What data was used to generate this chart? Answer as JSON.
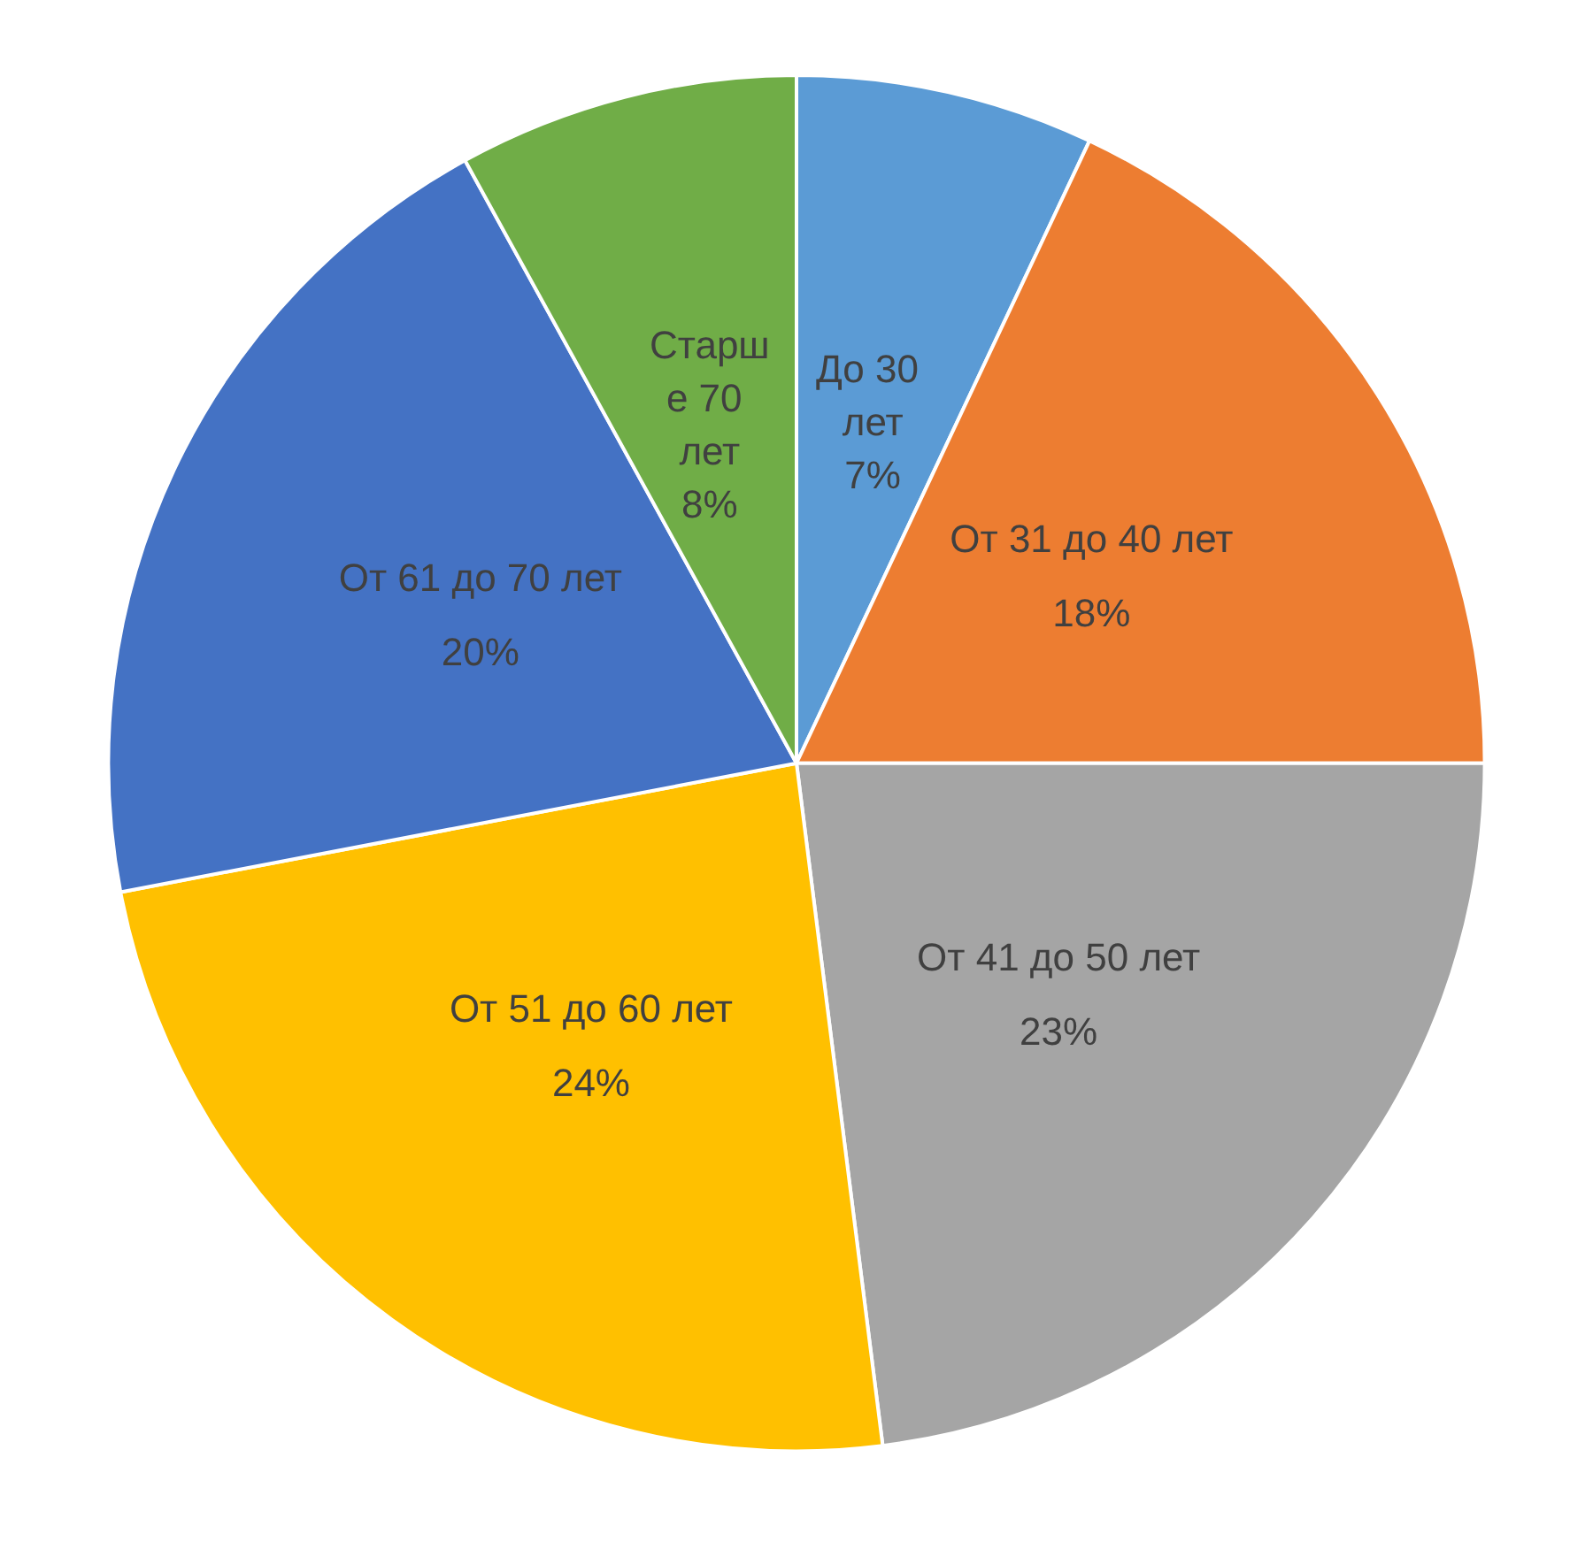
{
  "chart_data": {
    "type": "pie",
    "categories": [
      "До 30 лет",
      "От 31 до 40 лет",
      "От 41 до 50 лет",
      "От 51 до 60 лет",
      "От 61 до 70 лет",
      "Старше 70 лет"
    ],
    "values": [
      7,
      18,
      23,
      24,
      20,
      8
    ],
    "value_labels": [
      "7%",
      "18%",
      "23%",
      "24%",
      "20%",
      "8%"
    ],
    "colors": [
      "#5b9bd5",
      "#ed7d31",
      "#a5a5a5",
      "#ffc000",
      "#4472c4",
      "#70ad47"
    ],
    "legend": false
  }
}
